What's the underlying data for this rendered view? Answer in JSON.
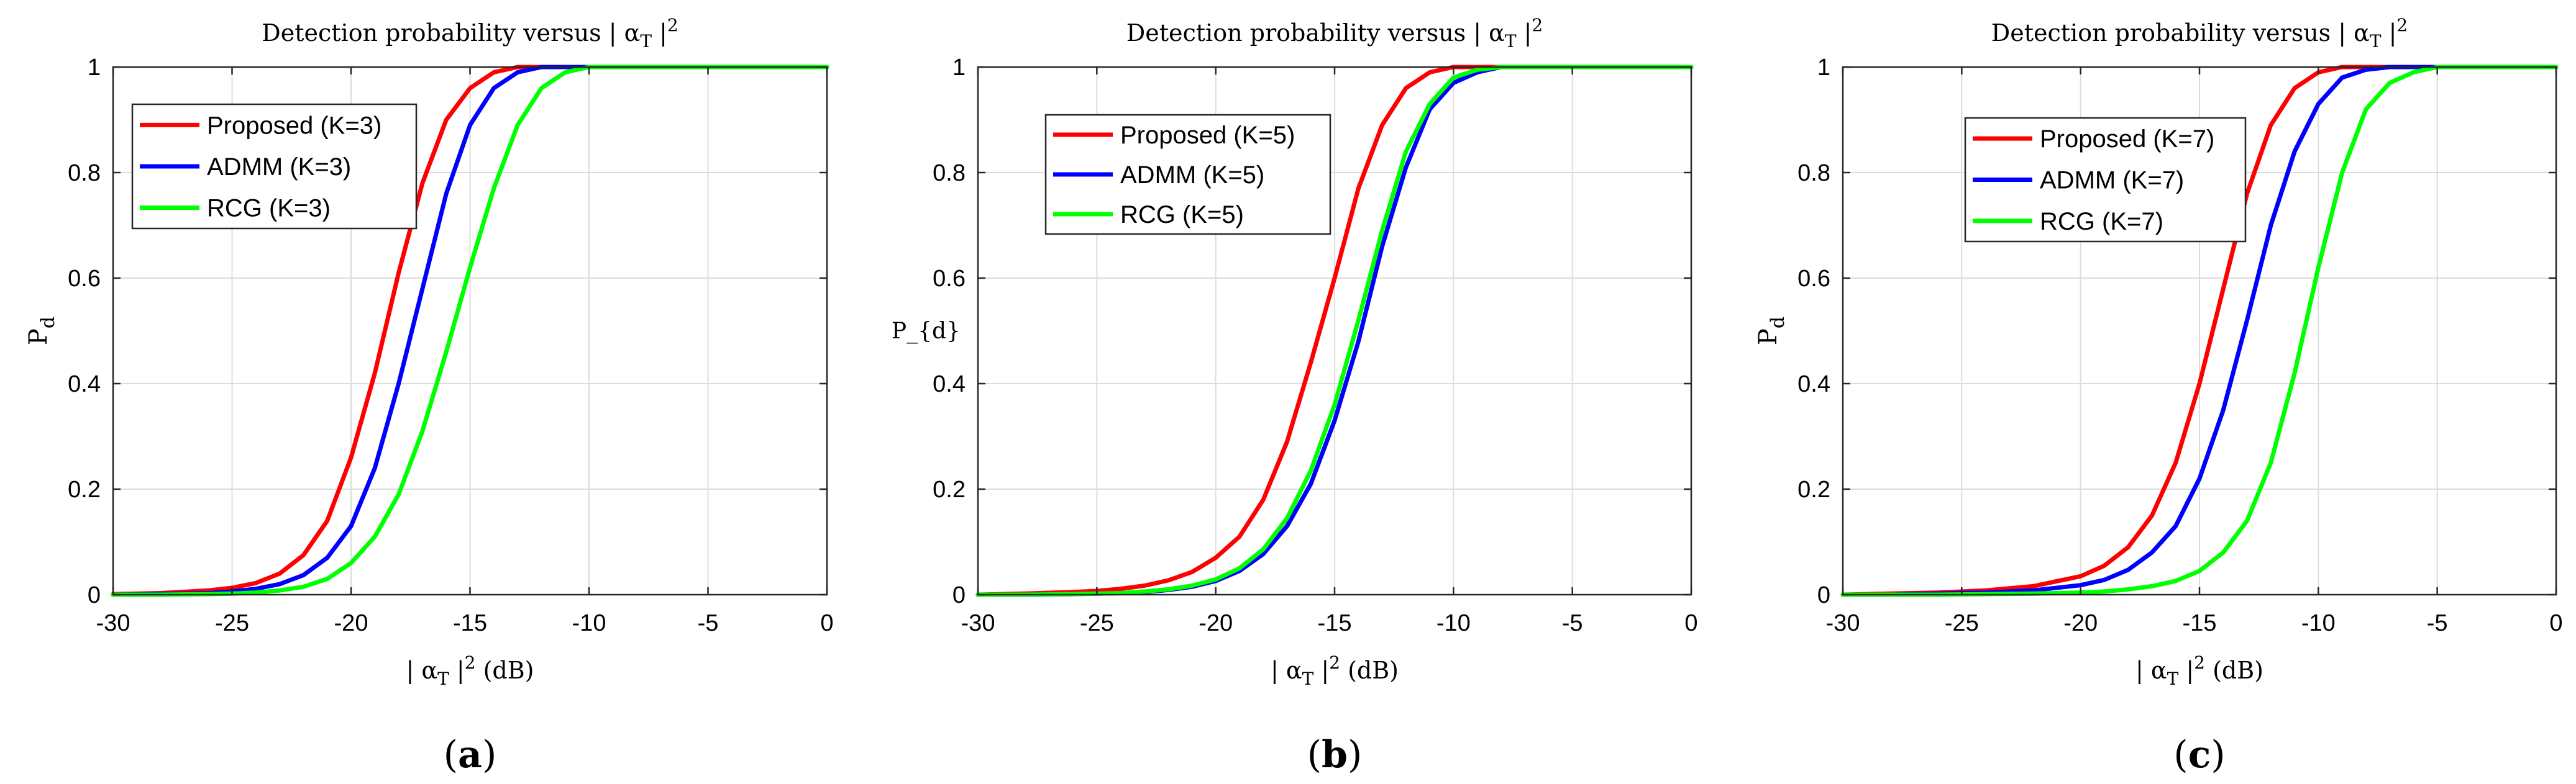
{
  "chart_data": [
    {
      "type": "line",
      "panel_label": "(a)",
      "title": "Detection probability versus | α_T |^2",
      "title_parts": [
        "Detection probability versus | α",
        "T",
        " |",
        "2"
      ],
      "xlabel_parts": [
        "| α",
        "T",
        " |",
        "2",
        " (dB)"
      ],
      "ylabel": "Pd",
      "ylabel_parts": [
        "P",
        "d"
      ],
      "xlim": [
        -30,
        0
      ],
      "ylim": [
        0,
        1
      ],
      "xticks": [
        -30,
        -25,
        -20,
        -15,
        -10,
        -5,
        0
      ],
      "yticks": [
        0,
        0.2,
        0.4,
        0.6,
        0.8,
        1
      ],
      "ytick_labels": [
        "0",
        "0.2",
        "0.4",
        "0.6",
        "0.8",
        "1"
      ],
      "grid": true,
      "legend_position": "top-left",
      "x": [
        -30,
        -28,
        -26,
        -25,
        -24,
        -23,
        -22,
        -21,
        -20,
        -19,
        -18,
        -17,
        -16,
        -15,
        -14,
        -13,
        -12,
        -11,
        -10,
        -9,
        -8,
        -6,
        -4,
        -2,
        0
      ],
      "series": [
        {
          "name": "Proposed (K=3)",
          "color": "#ff0000",
          "values": [
            0.001,
            0.003,
            0.008,
            0.013,
            0.022,
            0.04,
            0.075,
            0.14,
            0.26,
            0.42,
            0.61,
            0.78,
            0.9,
            0.96,
            0.99,
            1.0,
            1.0,
            1.0,
            1.0,
            1.0,
            1.0,
            1.0,
            1.0,
            1.0,
            1.0
          ]
        },
        {
          "name": "ADMM (K=3)",
          "color": "#0000ff",
          "values": [
            0.0,
            0.001,
            0.003,
            0.006,
            0.011,
            0.02,
            0.037,
            0.07,
            0.13,
            0.24,
            0.4,
            0.58,
            0.76,
            0.89,
            0.96,
            0.99,
            1.0,
            1.0,
            1.0,
            1.0,
            1.0,
            1.0,
            1.0,
            1.0,
            1.0
          ]
        },
        {
          "name": "RCG (K=3)",
          "color": "#00ff00",
          "values": [
            0.0,
            0.0,
            0.001,
            0.002,
            0.004,
            0.008,
            0.015,
            0.03,
            0.06,
            0.11,
            0.19,
            0.31,
            0.46,
            0.62,
            0.77,
            0.89,
            0.96,
            0.99,
            1.0,
            1.0,
            1.0,
            1.0,
            1.0,
            1.0,
            1.0
          ]
        }
      ]
    },
    {
      "type": "line",
      "panel_label": "(b)",
      "title": "Detection probability versus | α_T |^2",
      "title_parts": [
        "Detection probability versus | α",
        "T",
        " |",
        "2"
      ],
      "xlabel_parts": [
        "| α",
        "T",
        " |",
        "2",
        " (dB)"
      ],
      "ylabel": "P_{d}",
      "ylabel_parts": [
        "P_{d}",
        ""
      ],
      "xlim": [
        -30,
        0
      ],
      "ylim": [
        0,
        1
      ],
      "xticks": [
        -30,
        -25,
        -20,
        -15,
        -10,
        -5,
        0
      ],
      "yticks": [
        0,
        0.2,
        0.4,
        0.6,
        0.8,
        1
      ],
      "ytick_labels": [
        "0",
        "0.2",
        "0.4",
        "0.6",
        "0.8",
        "1"
      ],
      "grid": true,
      "legend_position": "top-left",
      "x": [
        -30,
        -28,
        -26,
        -25,
        -24,
        -23,
        -22,
        -21,
        -20,
        -19,
        -18,
        -17,
        -16,
        -15,
        -14,
        -13,
        -12,
        -11,
        -10,
        -9,
        -8,
        -6,
        -4,
        -2,
        0
      ],
      "series": [
        {
          "name": "Proposed (K=5)",
          "color": "#ff0000",
          "values": [
            0.0,
            0.002,
            0.005,
            0.007,
            0.011,
            0.017,
            0.027,
            0.043,
            0.07,
            0.11,
            0.18,
            0.29,
            0.44,
            0.6,
            0.77,
            0.89,
            0.96,
            0.99,
            1.0,
            1.0,
            1.0,
            1.0,
            1.0,
            1.0,
            1.0
          ]
        },
        {
          "name": "ADMM (K=5)",
          "color": "#0000ff",
          "values": [
            0.0,
            0.0,
            0.001,
            0.002,
            0.003,
            0.005,
            0.009,
            0.015,
            0.026,
            0.045,
            0.077,
            0.13,
            0.21,
            0.33,
            0.48,
            0.66,
            0.81,
            0.92,
            0.97,
            0.99,
            1.0,
            1.0,
            1.0,
            1.0,
            1.0
          ]
        },
        {
          "name": "RCG (K=5)",
          "color": "#00ff00",
          "values": [
            0.0,
            0.0,
            0.001,
            0.002,
            0.003,
            0.006,
            0.01,
            0.017,
            0.029,
            0.05,
            0.086,
            0.145,
            0.235,
            0.36,
            0.52,
            0.69,
            0.84,
            0.93,
            0.98,
            0.995,
            1.0,
            1.0,
            1.0,
            1.0,
            1.0
          ]
        }
      ]
    },
    {
      "type": "line",
      "panel_label": "(c)",
      "title": "Detection probability versus | α_T |^2",
      "title_parts": [
        "Detection probability versus | α",
        "T",
        " |",
        "2"
      ],
      "xlabel_parts": [
        "| α",
        "T",
        " |",
        "2",
        " (dB)"
      ],
      "ylabel": "Pd",
      "ylabel_parts": [
        "P",
        "d"
      ],
      "xlim": [
        -30,
        0
      ],
      "ylim": [
        0,
        1
      ],
      "xticks": [
        -30,
        -25,
        -20,
        -15,
        -10,
        -5,
        0
      ],
      "yticks": [
        0,
        0.2,
        0.4,
        0.6,
        0.8,
        1
      ],
      "ytick_labels": [
        "0",
        "0.2",
        "0.4",
        "0.6",
        "0.8",
        "1"
      ],
      "grid": true,
      "legend_position": "top-left",
      "x": [
        -30,
        -28,
        -26,
        -24,
        -22,
        -20,
        -19,
        -18,
        -17,
        -16,
        -15,
        -14,
        -13,
        -12,
        -11,
        -10,
        -9,
        -8,
        -7,
        -6,
        -5,
        -4,
        -2,
        0
      ],
      "series": [
        {
          "name": "Proposed (K=7)",
          "color": "#ff0000",
          "values": [
            0.0,
            0.002,
            0.004,
            0.008,
            0.016,
            0.035,
            0.055,
            0.09,
            0.15,
            0.25,
            0.4,
            0.58,
            0.76,
            0.89,
            0.96,
            0.99,
            1.0,
            1.0,
            1.0,
            1.0,
            1.0,
            1.0,
            1.0,
            1.0
          ]
        },
        {
          "name": "ADMM (K=7)",
          "color": "#0000ff",
          "values": [
            0.0,
            0.0,
            0.002,
            0.004,
            0.008,
            0.018,
            0.028,
            0.047,
            0.08,
            0.13,
            0.22,
            0.35,
            0.52,
            0.7,
            0.84,
            0.93,
            0.98,
            0.995,
            1.0,
            1.0,
            1.0,
            1.0,
            1.0,
            1.0
          ]
        },
        {
          "name": "RCG (K=7)",
          "color": "#00ff00",
          "values": [
            0.0,
            0.0,
            0.0,
            0.001,
            0.002,
            0.004,
            0.006,
            0.01,
            0.016,
            0.026,
            0.045,
            0.08,
            0.14,
            0.25,
            0.42,
            0.62,
            0.8,
            0.92,
            0.97,
            0.99,
            1.0,
            1.0,
            1.0,
            1.0
          ]
        }
      ]
    }
  ]
}
